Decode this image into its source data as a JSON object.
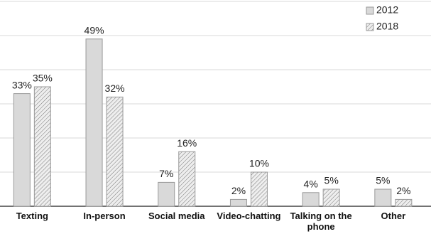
{
  "chart_data": {
    "type": "bar",
    "categories": [
      "Texting",
      "In-person",
      "Social media",
      "Video-chatting",
      "Talking on the phone",
      "Other"
    ],
    "series": [
      {
        "name": "2012",
        "color": "#d9d9d9",
        "hatch": false,
        "values": [
          33,
          49,
          7,
          2,
          4,
          5
        ],
        "value_labels": [
          "33%",
          "49%",
          "7%",
          "2%",
          "4%",
          "5%"
        ]
      },
      {
        "name": "2018",
        "color": "#e8e8e8",
        "hatch": true,
        "values": [
          35,
          32,
          16,
          10,
          5,
          2
        ],
        "value_labels": [
          "35%",
          "32%",
          "16%",
          "10%",
          "5%",
          "2%"
        ]
      }
    ],
    "ylim": [
      0,
      60
    ],
    "yticks": [
      0,
      10,
      20,
      30,
      40,
      50,
      60
    ],
    "grid": true,
    "legend": "top-right"
  }
}
